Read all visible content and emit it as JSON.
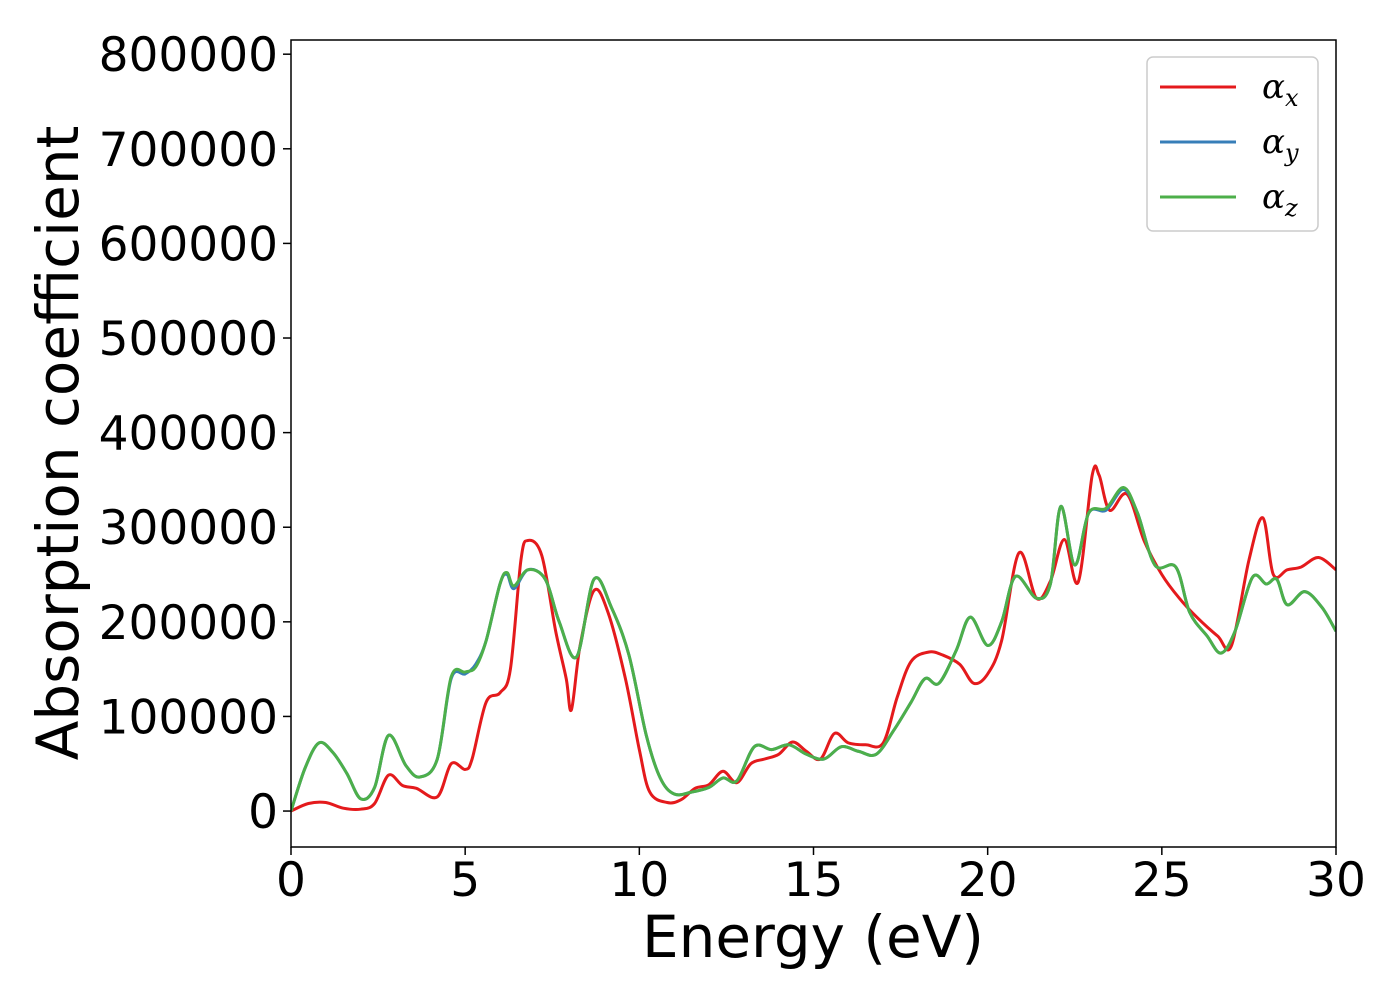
{
  "chart_data": {
    "type": "line",
    "xlabel": "Energy (eV)",
    "ylabel": "Absorption coefficient",
    "xlim": [
      0,
      30
    ],
    "ylim": [
      -38000,
      815000
    ],
    "x_ticks": [
      "0",
      "5",
      "10",
      "15",
      "20",
      "25",
      "30"
    ],
    "y_ticks": [
      "0",
      "100000",
      "200000",
      "300000",
      "400000",
      "500000",
      "600000",
      "700000",
      "800000"
    ],
    "grid": false,
    "legend_position": "top-right",
    "series": [
      {
        "name": "α_x",
        "legend_symbol": "α",
        "legend_subscript": "x",
        "color": "#e41a1c",
        "points": [
          [
            0,
            0
          ],
          [
            0.5,
            8000
          ],
          [
            1,
            9000
          ],
          [
            1.5,
            3000
          ],
          [
            2,
            2000
          ],
          [
            2.4,
            8000
          ],
          [
            2.8,
            38000
          ],
          [
            3.2,
            27000
          ],
          [
            3.6,
            24000
          ],
          [
            4.2,
            15000
          ],
          [
            4.6,
            50000
          ],
          [
            5,
            44000
          ],
          [
            5.2,
            55000
          ],
          [
            5.6,
            115000
          ],
          [
            6,
            125000
          ],
          [
            6.3,
            150000
          ],
          [
            6.6,
            265000
          ],
          [
            6.8,
            286000
          ],
          [
            7.2,
            270000
          ],
          [
            7.6,
            190000
          ],
          [
            7.9,
            140000
          ],
          [
            8.05,
            107000
          ],
          [
            8.3,
            175000
          ],
          [
            8.7,
            233000
          ],
          [
            9.1,
            210000
          ],
          [
            9.6,
            140000
          ],
          [
            10,
            65000
          ],
          [
            10.3,
            20000
          ],
          [
            10.8,
            9000
          ],
          [
            11.2,
            12000
          ],
          [
            11.6,
            24000
          ],
          [
            12,
            28000
          ],
          [
            12.4,
            42000
          ],
          [
            12.8,
            30000
          ],
          [
            13.2,
            50000
          ],
          [
            13.6,
            55000
          ],
          [
            14,
            60000
          ],
          [
            14.4,
            73000
          ],
          [
            14.8,
            63000
          ],
          [
            15.2,
            55000
          ],
          [
            15.6,
            82000
          ],
          [
            16,
            72000
          ],
          [
            16.5,
            70000
          ],
          [
            17,
            72000
          ],
          [
            17.4,
            120000
          ],
          [
            17.8,
            158000
          ],
          [
            18.3,
            168000
          ],
          [
            18.7,
            165000
          ],
          [
            19.2,
            155000
          ],
          [
            19.6,
            135000
          ],
          [
            20,
            145000
          ],
          [
            20.4,
            180000
          ],
          [
            20.9,
            273000
          ],
          [
            21.4,
            225000
          ],
          [
            21.8,
            243000
          ],
          [
            22.2,
            287000
          ],
          [
            22.6,
            242000
          ],
          [
            23,
            355000
          ],
          [
            23.2,
            355000
          ],
          [
            23.5,
            318000
          ],
          [
            24,
            335000
          ],
          [
            24.5,
            285000
          ],
          [
            25,
            250000
          ],
          [
            25.5,
            225000
          ],
          [
            26,
            205000
          ],
          [
            26.6,
            185000
          ],
          [
            27,
            175000
          ],
          [
            27.5,
            265000
          ],
          [
            27.9,
            310000
          ],
          [
            28.2,
            250000
          ],
          [
            28.6,
            255000
          ],
          [
            29,
            258000
          ],
          [
            29.5,
            268000
          ],
          [
            30,
            255000
          ]
        ]
      },
      {
        "name": "α_y",
        "legend_symbol": "α",
        "legend_subscript": "y",
        "color": "#377eb8",
        "points": [
          [
            0,
            0
          ],
          [
            0.4,
            45000
          ],
          [
            0.8,
            72000
          ],
          [
            1.2,
            62000
          ],
          [
            1.6,
            40000
          ],
          [
            2,
            13000
          ],
          [
            2.4,
            25000
          ],
          [
            2.8,
            80000
          ],
          [
            3.3,
            48000
          ],
          [
            3.7,
            36000
          ],
          [
            4.2,
            55000
          ],
          [
            4.6,
            140000
          ],
          [
            5,
            145000
          ],
          [
            5.3,
            155000
          ],
          [
            5.6,
            180000
          ],
          [
            6,
            240000
          ],
          [
            6.2,
            250000
          ],
          [
            6.4,
            235000
          ],
          [
            6.8,
            255000
          ],
          [
            7.3,
            245000
          ],
          [
            7.7,
            200000
          ],
          [
            8.2,
            163000
          ],
          [
            8.7,
            245000
          ],
          [
            9.2,
            215000
          ],
          [
            9.7,
            165000
          ],
          [
            10.2,
            80000
          ],
          [
            10.6,
            35000
          ],
          [
            11,
            18000
          ],
          [
            11.5,
            20000
          ],
          [
            12,
            25000
          ],
          [
            12.4,
            35000
          ],
          [
            12.8,
            32000
          ],
          [
            13.3,
            68000
          ],
          [
            13.8,
            65000
          ],
          [
            14.3,
            70000
          ],
          [
            14.8,
            60000
          ],
          [
            15.3,
            55000
          ],
          [
            15.8,
            68000
          ],
          [
            16.3,
            63000
          ],
          [
            16.8,
            60000
          ],
          [
            17.3,
            85000
          ],
          [
            17.8,
            115000
          ],
          [
            18.2,
            140000
          ],
          [
            18.6,
            135000
          ],
          [
            19.1,
            170000
          ],
          [
            19.5,
            205000
          ],
          [
            20,
            175000
          ],
          [
            20.4,
            200000
          ],
          [
            20.8,
            248000
          ],
          [
            21.4,
            225000
          ],
          [
            21.8,
            240000
          ],
          [
            22.1,
            322000
          ],
          [
            22.5,
            260000
          ],
          [
            22.9,
            315000
          ],
          [
            23.4,
            318000
          ],
          [
            23.9,
            340000
          ],
          [
            24.3,
            315000
          ],
          [
            24.8,
            260000
          ],
          [
            25.4,
            258000
          ],
          [
            25.8,
            210000
          ],
          [
            26.3,
            185000
          ],
          [
            26.7,
            167000
          ],
          [
            27.1,
            190000
          ],
          [
            27.6,
            247000
          ],
          [
            28,
            240000
          ],
          [
            28.3,
            245000
          ],
          [
            28.6,
            218000
          ],
          [
            29.1,
            232000
          ],
          [
            29.6,
            215000
          ],
          [
            30,
            190000
          ]
        ]
      },
      {
        "name": "α_z",
        "legend_symbol": "α",
        "legend_subscript": "z",
        "color": "#4daf4a",
        "points": [
          [
            0,
            0
          ],
          [
            0.4,
            45000
          ],
          [
            0.8,
            72000
          ],
          [
            1.2,
            62000
          ],
          [
            1.6,
            40000
          ],
          [
            2,
            13000
          ],
          [
            2.4,
            25000
          ],
          [
            2.8,
            80000
          ],
          [
            3.3,
            48000
          ],
          [
            3.7,
            36000
          ],
          [
            4.2,
            55000
          ],
          [
            4.6,
            142000
          ],
          [
            5,
            147000
          ],
          [
            5.3,
            152000
          ],
          [
            5.6,
            180000
          ],
          [
            6,
            240000
          ],
          [
            6.2,
            252000
          ],
          [
            6.4,
            238000
          ],
          [
            6.8,
            255000
          ],
          [
            7.3,
            245000
          ],
          [
            7.7,
            200000
          ],
          [
            8.2,
            163000
          ],
          [
            8.7,
            245000
          ],
          [
            9.2,
            215000
          ],
          [
            9.7,
            165000
          ],
          [
            10.2,
            80000
          ],
          [
            10.6,
            35000
          ],
          [
            11,
            18000
          ],
          [
            11.5,
            20000
          ],
          [
            12,
            25000
          ],
          [
            12.4,
            35000
          ],
          [
            12.8,
            32000
          ],
          [
            13.3,
            68000
          ],
          [
            13.8,
            65000
          ],
          [
            14.3,
            70000
          ],
          [
            14.8,
            60000
          ],
          [
            15.3,
            55000
          ],
          [
            15.8,
            68000
          ],
          [
            16.3,
            63000
          ],
          [
            16.8,
            60000
          ],
          [
            17.3,
            85000
          ],
          [
            17.8,
            115000
          ],
          [
            18.2,
            140000
          ],
          [
            18.6,
            135000
          ],
          [
            19.1,
            170000
          ],
          [
            19.5,
            205000
          ],
          [
            20,
            175000
          ],
          [
            20.4,
            200000
          ],
          [
            20.8,
            248000
          ],
          [
            21.4,
            225000
          ],
          [
            21.8,
            240000
          ],
          [
            22.1,
            322000
          ],
          [
            22.5,
            260000
          ],
          [
            22.9,
            315000
          ],
          [
            23.4,
            320000
          ],
          [
            23.9,
            342000
          ],
          [
            24.3,
            315000
          ],
          [
            24.8,
            260000
          ],
          [
            25.4,
            258000
          ],
          [
            25.8,
            210000
          ],
          [
            26.3,
            185000
          ],
          [
            26.7,
            167000
          ],
          [
            27.1,
            190000
          ],
          [
            27.6,
            247000
          ],
          [
            28,
            240000
          ],
          [
            28.3,
            245000
          ],
          [
            28.6,
            218000
          ],
          [
            29.1,
            232000
          ],
          [
            29.6,
            215000
          ],
          [
            30,
            190000
          ]
        ]
      }
    ]
  }
}
